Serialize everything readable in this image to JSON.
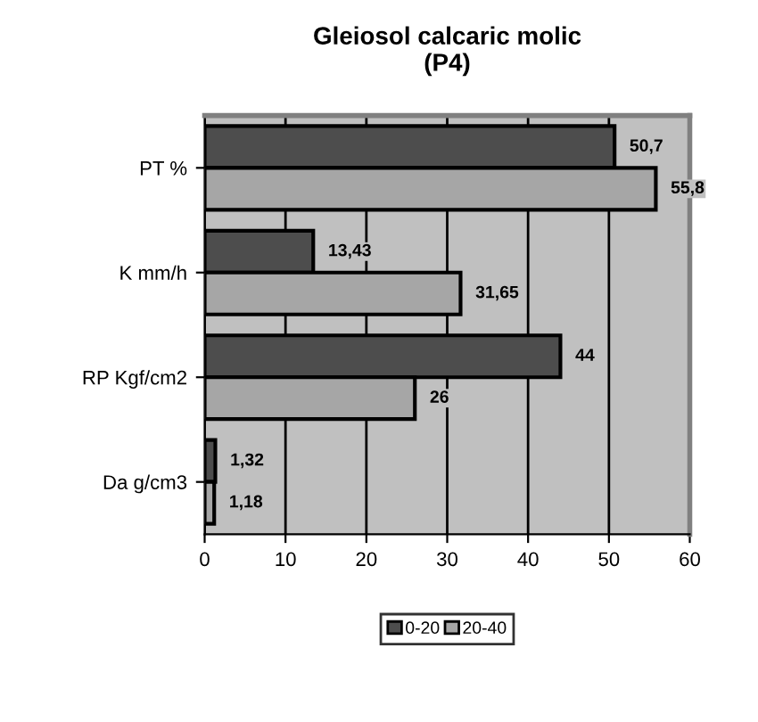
{
  "chart_data": {
    "type": "bar",
    "orientation": "horizontal",
    "title": "Gleiosol calcaric molic\n(P4)",
    "categories": [
      "PT %",
      "K mm/h",
      "RP Kgf/cm2",
      "Da g/cm3"
    ],
    "series": [
      {
        "name": "0-20",
        "color": "#4d4d4d",
        "values": [
          50.7,
          13.43,
          44,
          1.32
        ],
        "value_labels": [
          "50,7",
          "13,43",
          "44",
          "1,32"
        ]
      },
      {
        "name": "20-40",
        "color": "#a6a6a6",
        "values": [
          55.8,
          31.65,
          26,
          1.18
        ],
        "value_labels": [
          "55,8",
          "31,65",
          "26",
          "1,18"
        ]
      }
    ],
    "xlim": [
      0,
      60
    ],
    "xticks": [
      0,
      10,
      20,
      30,
      40,
      50,
      60
    ],
    "grid": "x",
    "legend": "bottom"
  }
}
